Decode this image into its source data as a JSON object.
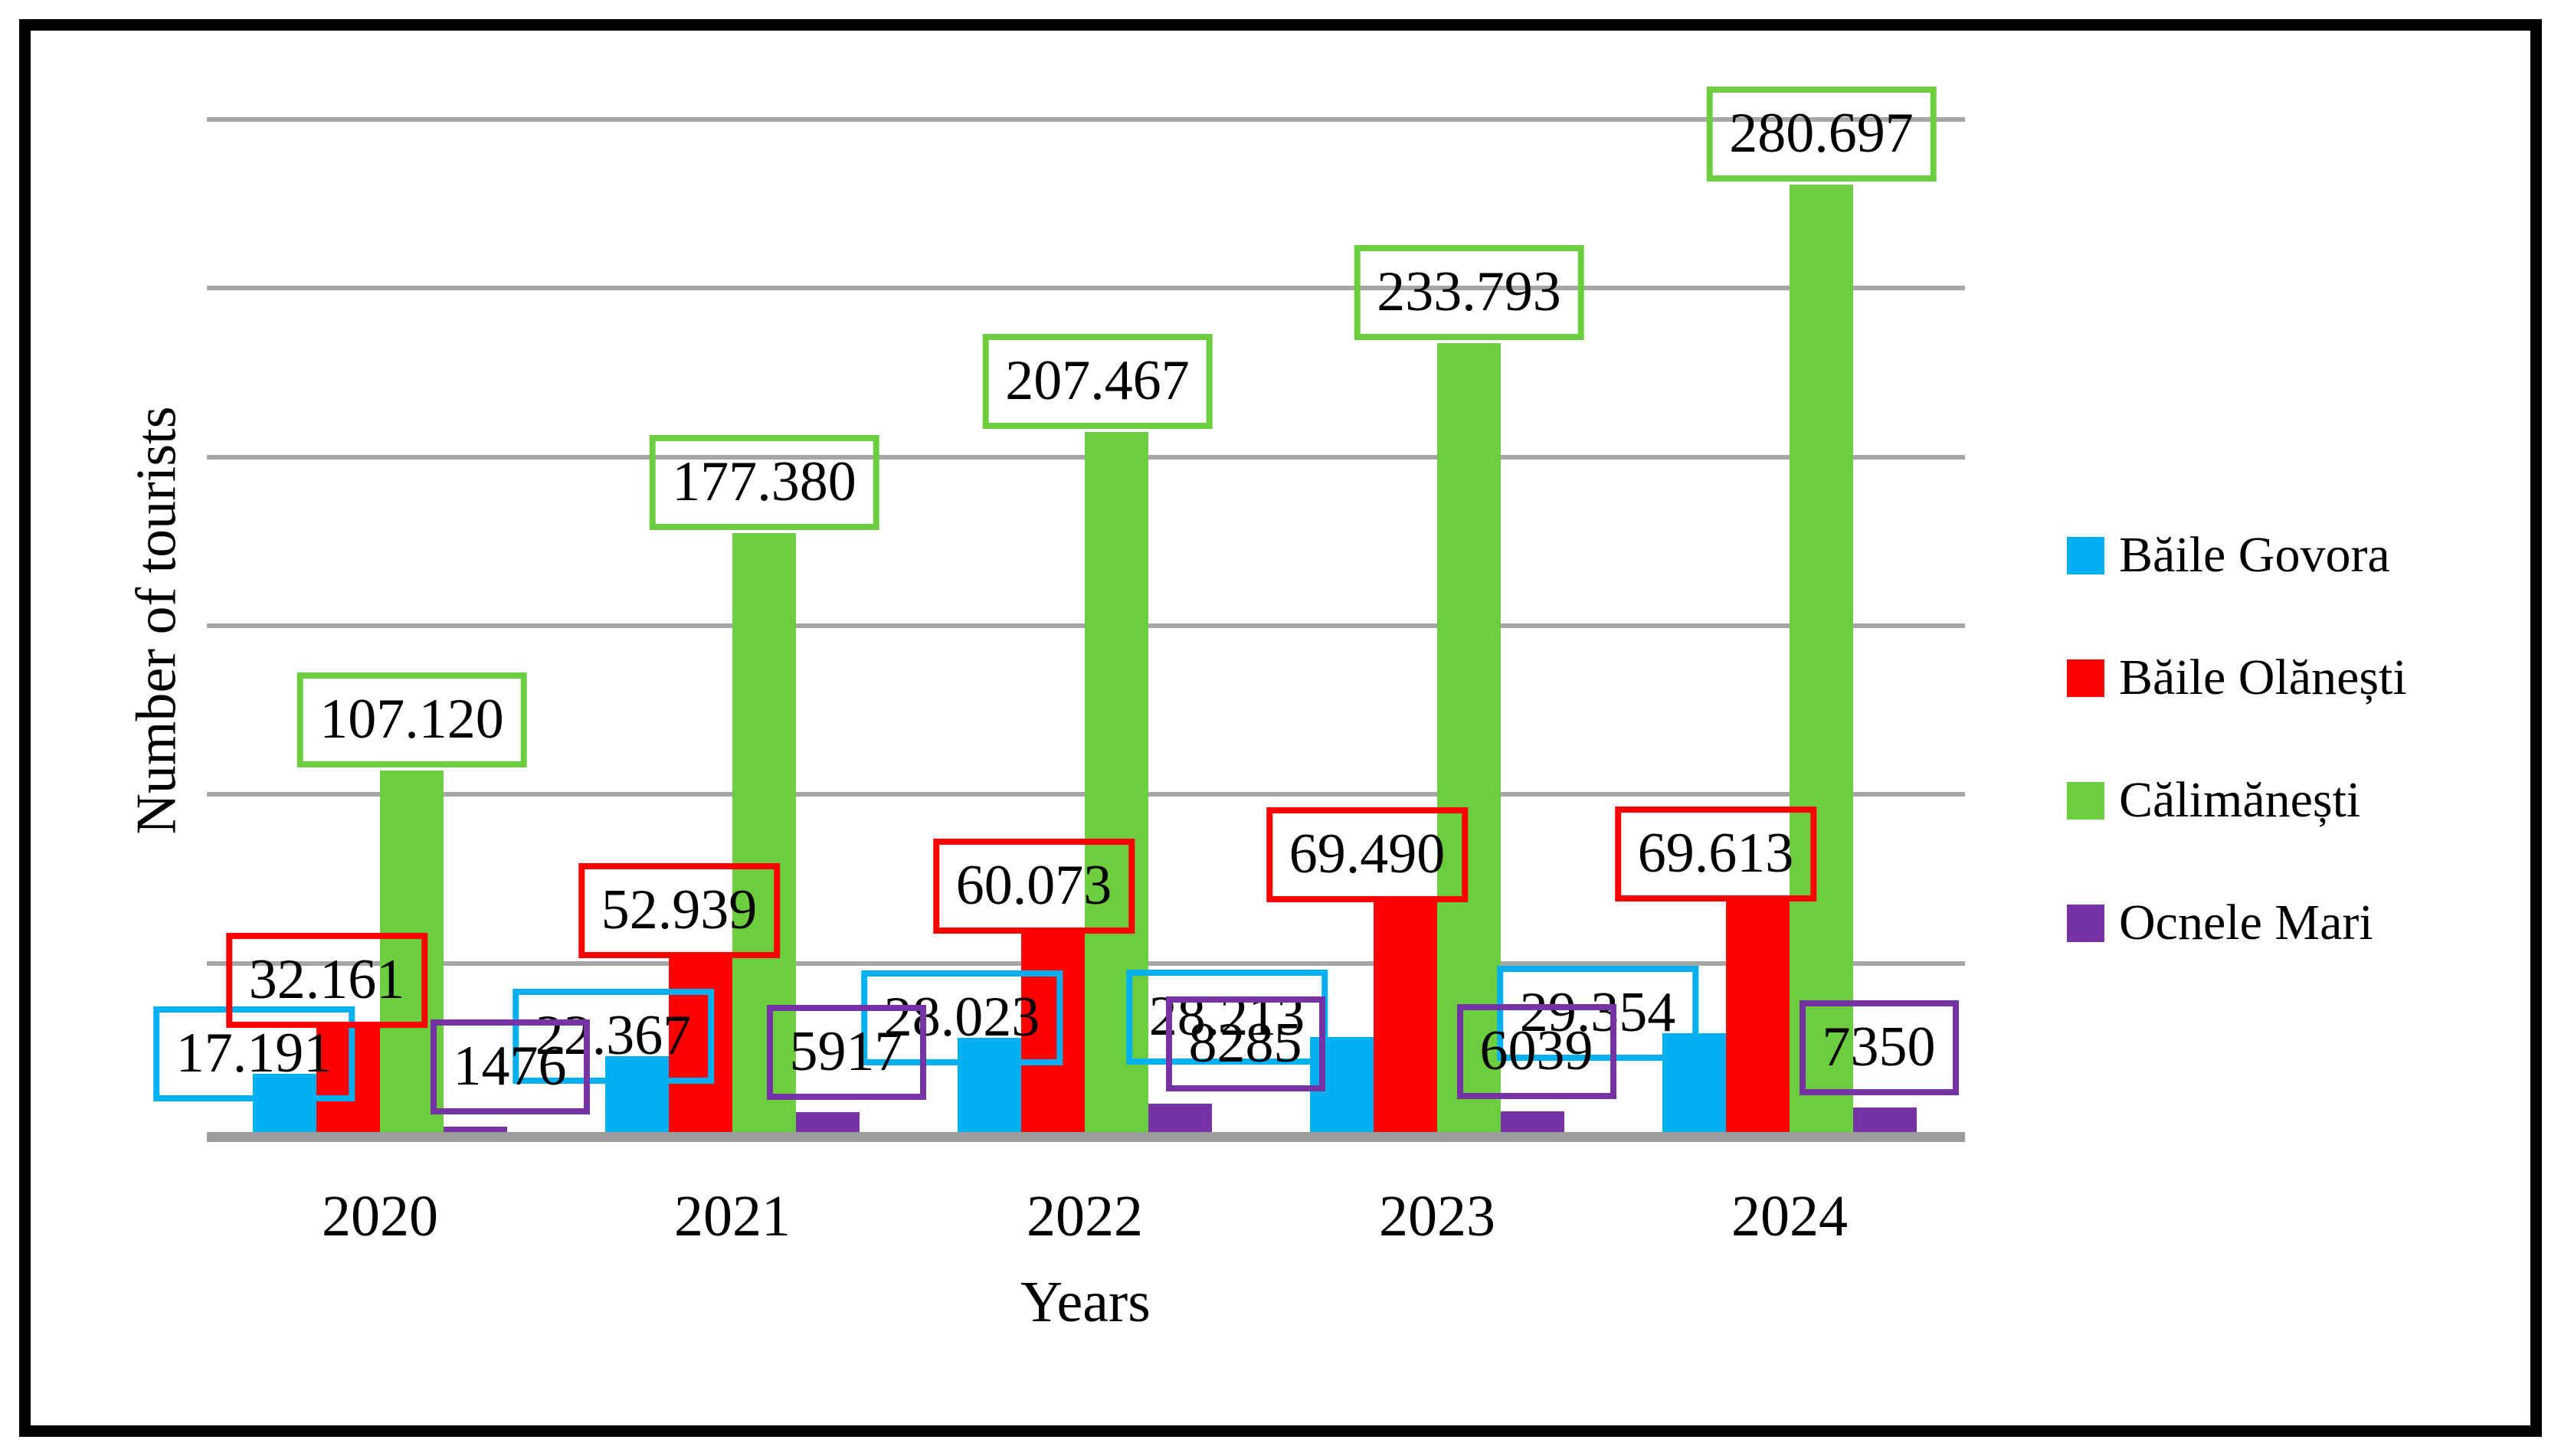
{
  "chart_data": {
    "type": "bar",
    "title": "",
    "xlabel": "Years",
    "ylabel": "Number of tourists",
    "categories": [
      "2020",
      "2021",
      "2022",
      "2023",
      "2024"
    ],
    "series": [
      {
        "name": "Băile Govora",
        "color": "#00B0F0",
        "values": [
          17191,
          22367,
          28023,
          28213,
          29354
        ],
        "labels": [
          "17.191",
          "22.367",
          "28.023",
          "28.213",
          "29.354"
        ]
      },
      {
        "name": "Băile Olănești",
        "color": "#FF0000",
        "values": [
          32161,
          52939,
          60073,
          69490,
          69613
        ],
        "labels": [
          "32.161",
          "52.939",
          "60.073",
          "69.490",
          "69.613"
        ]
      },
      {
        "name": "Călimănești",
        "color": "#6CCE3E",
        "values": [
          107120,
          177380,
          207467,
          233793,
          280697
        ],
        "labels": [
          "107.120",
          "177.380",
          "207.467",
          "233.793",
          "280.697"
        ]
      },
      {
        "name": "Ocnele Mari",
        "color": "#7533A6",
        "values": [
          1476,
          5917,
          8285,
          6039,
          7350
        ],
        "labels": [
          "1476",
          "5917",
          "8285",
          "6039",
          "7350"
        ]
      }
    ],
    "ylim": [
      0,
      300000
    ],
    "gridline_step": 50000,
    "grid": true,
    "legend_position": "right",
    "layout_hints": {
      "label_dx": {
        "Băile Govora": [
          -40,
          -31,
          -36,
          -150,
          -126
        ],
        "Băile Olănești": [
          -28,
          -28,
          -25,
          -50,
          -55
        ],
        "Călimănești": [
          0,
          0,
          -25,
          0,
          0
        ],
        "Ocnele Mari": [
          45,
          24,
          85,
          5,
          -8
        ]
      },
      "label_overlap": {
        "Băile Govora": 36,
        "Băile Olănești": 6,
        "Călimănești": -4,
        "Ocnele Mari": -16
      }
    },
    "colors": {
      "gridline": "#A6A6A6",
      "axis": "#9C9C9C",
      "frame": "#000000",
      "background": "#FFFFFF",
      "label_text": "#000000"
    }
  }
}
